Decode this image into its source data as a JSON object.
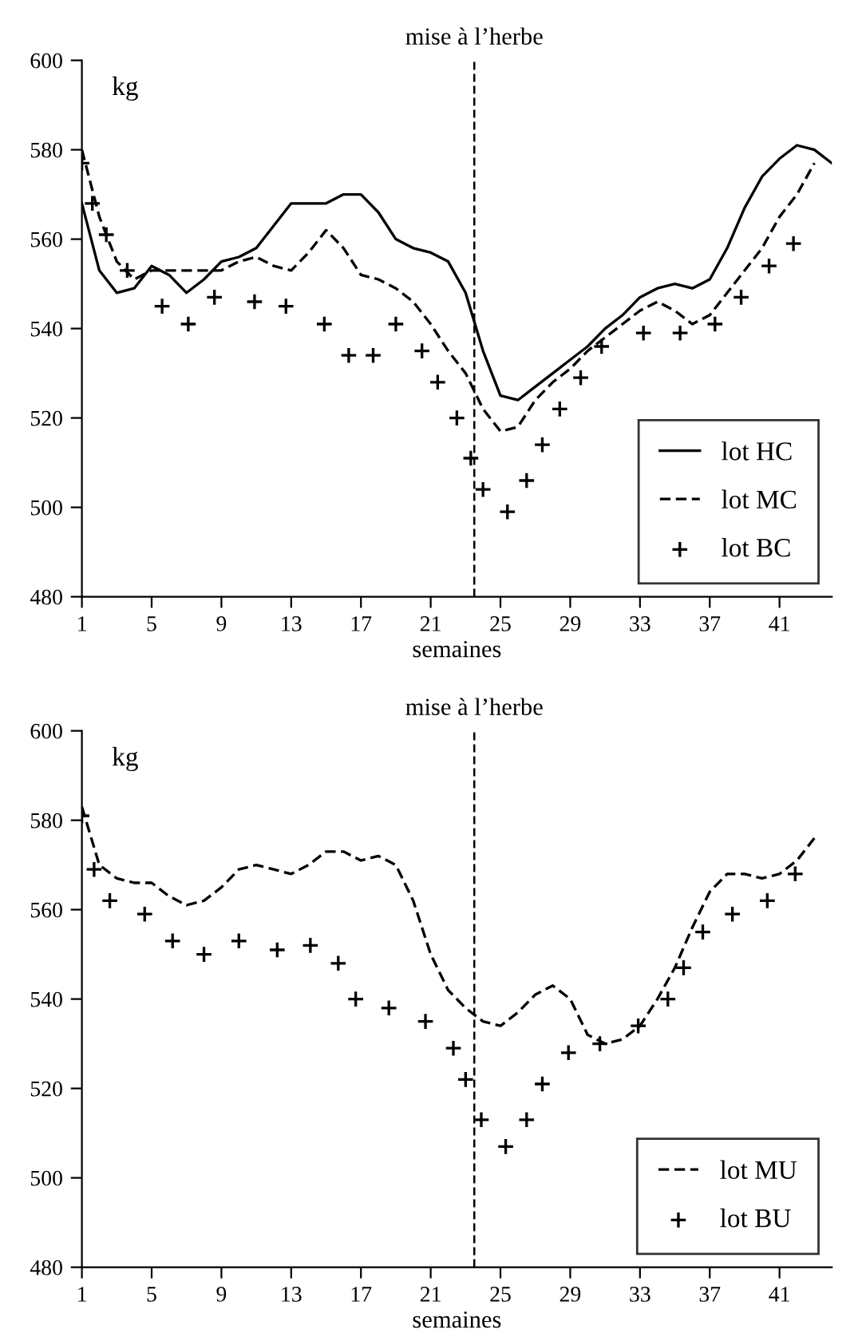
{
  "chart_data": [
    {
      "type": "line",
      "xlabel": "semaines",
      "ylabel": "kg",
      "xlim": [
        1,
        44
      ],
      "ylim": [
        480,
        600
      ],
      "xticks": [
        1,
        5,
        9,
        13,
        17,
        21,
        25,
        29,
        33,
        37,
        41
      ],
      "yticks": [
        480,
        500,
        520,
        540,
        560,
        580,
        600
      ],
      "legend": "bottom right",
      "grid": false,
      "ref_lines": [
        {
          "axis": "x",
          "value": 23.5,
          "label": "mise à l’herbe",
          "line_style": "dashed",
          "color": "#000000"
        }
      ],
      "series": [
        {
          "name": "lot HC",
          "color": "#000000",
          "line_style": "solid",
          "marker": "none",
          "x": [
            1,
            2,
            3,
            4,
            5,
            6,
            7,
            8,
            9,
            10,
            11,
            12,
            13,
            14,
            15,
            16,
            17,
            18,
            19,
            20,
            21,
            22,
            23,
            24,
            25,
            26,
            27,
            28,
            29,
            30,
            31,
            32,
            33,
            34,
            35,
            36,
            37,
            38,
            39,
            40,
            41,
            42,
            43,
            44
          ],
          "values": [
            568,
            553,
            548,
            549,
            554,
            552,
            548,
            551,
            555,
            556,
            558,
            563,
            568,
            568,
            568,
            570,
            570,
            566,
            560,
            558,
            557,
            555,
            548,
            535,
            525,
            524,
            527,
            530,
            533,
            536,
            540,
            543,
            547,
            549,
            550,
            549,
            551,
            558,
            567,
            574,
            578,
            581,
            580,
            577
          ]
        },
        {
          "name": "lot MC",
          "color": "#000000",
          "line_style": "dashed",
          "marker": "none",
          "x": [
            1,
            2,
            3,
            4,
            5,
            6,
            7,
            8,
            9,
            10,
            11,
            12,
            13,
            14,
            15,
            16,
            17,
            18,
            19,
            20,
            21,
            22,
            23,
            24,
            25,
            26,
            27,
            28,
            29,
            30,
            31,
            32,
            33,
            34,
            35,
            36,
            37,
            38,
            39,
            40,
            41,
            42,
            43
          ],
          "values": [
            580,
            565,
            555,
            551,
            553,
            553,
            553,
            553,
            553,
            555,
            556,
            554,
            553,
            557,
            562,
            558,
            552,
            551,
            549,
            546,
            541,
            535,
            530,
            522,
            517,
            518,
            524,
            528,
            531,
            535,
            538,
            541,
            544,
            546,
            544,
            541,
            543,
            548,
            553,
            558,
            565,
            570,
            577
          ]
        },
        {
          "name": "lot BC",
          "color": "#000000",
          "type": "scatter",
          "marker": "cross",
          "x": [
            1,
            1.6,
            2.4,
            3.6,
            5.6,
            7.1,
            8.6,
            10.9,
            12.7,
            14.9,
            16.3,
            17.7,
            19,
            20.5,
            21.4,
            22.5,
            23.3,
            24,
            25.4,
            26.5,
            27.4,
            28.4,
            29.6,
            30.8,
            33.2,
            35.3,
            37.3,
            38.8,
            40.4,
            41.8
          ],
          "values": [
            577,
            568,
            561,
            553,
            545,
            541,
            547,
            546,
            545,
            541,
            534,
            534,
            541,
            535,
            528,
            520,
            511,
            504,
            499,
            506,
            514,
            522,
            529,
            536,
            539,
            539,
            541,
            547,
            554,
            559
          ]
        }
      ]
    },
    {
      "type": "line",
      "xlabel": "semaines",
      "ylabel": "kg",
      "xlim": [
        1,
        44
      ],
      "ylim": [
        480,
        600
      ],
      "xticks": [
        1,
        5,
        9,
        13,
        17,
        21,
        25,
        29,
        33,
        37,
        41
      ],
      "yticks": [
        480,
        500,
        520,
        540,
        560,
        580,
        600
      ],
      "legend": "bottom right",
      "grid": false,
      "ref_lines": [
        {
          "axis": "x",
          "value": 23.5,
          "label": "mise à l’herbe",
          "line_style": "dashed",
          "color": "#000000"
        }
      ],
      "series": [
        {
          "name": "lot MU",
          "color": "#000000",
          "line_style": "dashed",
          "marker": "none",
          "x": [
            1,
            2,
            3,
            4,
            5,
            6,
            7,
            8,
            9,
            10,
            11,
            12,
            13,
            14,
            15,
            16,
            17,
            18,
            19,
            20,
            21,
            22,
            23,
            24,
            25,
            26,
            27,
            28,
            29,
            30,
            31,
            32,
            33,
            34,
            35,
            36,
            37,
            38,
            39,
            40,
            41,
            42,
            43
          ],
          "values": [
            583,
            570,
            567,
            566,
            566,
            563,
            561,
            562,
            565,
            569,
            570,
            569,
            568,
            570,
            573,
            573,
            571,
            572,
            570,
            562,
            550,
            542,
            538,
            535,
            534,
            537,
            541,
            543,
            540,
            532,
            530,
            531,
            534,
            540,
            547,
            556,
            564,
            568,
            568,
            567,
            568,
            571,
            576
          ]
        },
        {
          "name": "lot BU",
          "color": "#000000",
          "type": "scatter",
          "marker": "cross",
          "x": [
            1,
            1.7,
            2.6,
            4.6,
            6.2,
            8,
            10,
            12.2,
            14.1,
            15.7,
            16.7,
            18.6,
            20.7,
            22.3,
            23,
            23.9,
            25.3,
            26.5,
            27.4,
            28.9,
            30.7,
            32.9,
            34.6,
            35.5,
            36.6,
            38.3,
            40.3,
            41.9
          ],
          "values": [
            581,
            569,
            562,
            559,
            553,
            550,
            553,
            551,
            552,
            548,
            540,
            538,
            535,
            529,
            522,
            513,
            507,
            513,
            521,
            528,
            530,
            534,
            540,
            547,
            555,
            559,
            562,
            568
          ]
        }
      ]
    }
  ]
}
